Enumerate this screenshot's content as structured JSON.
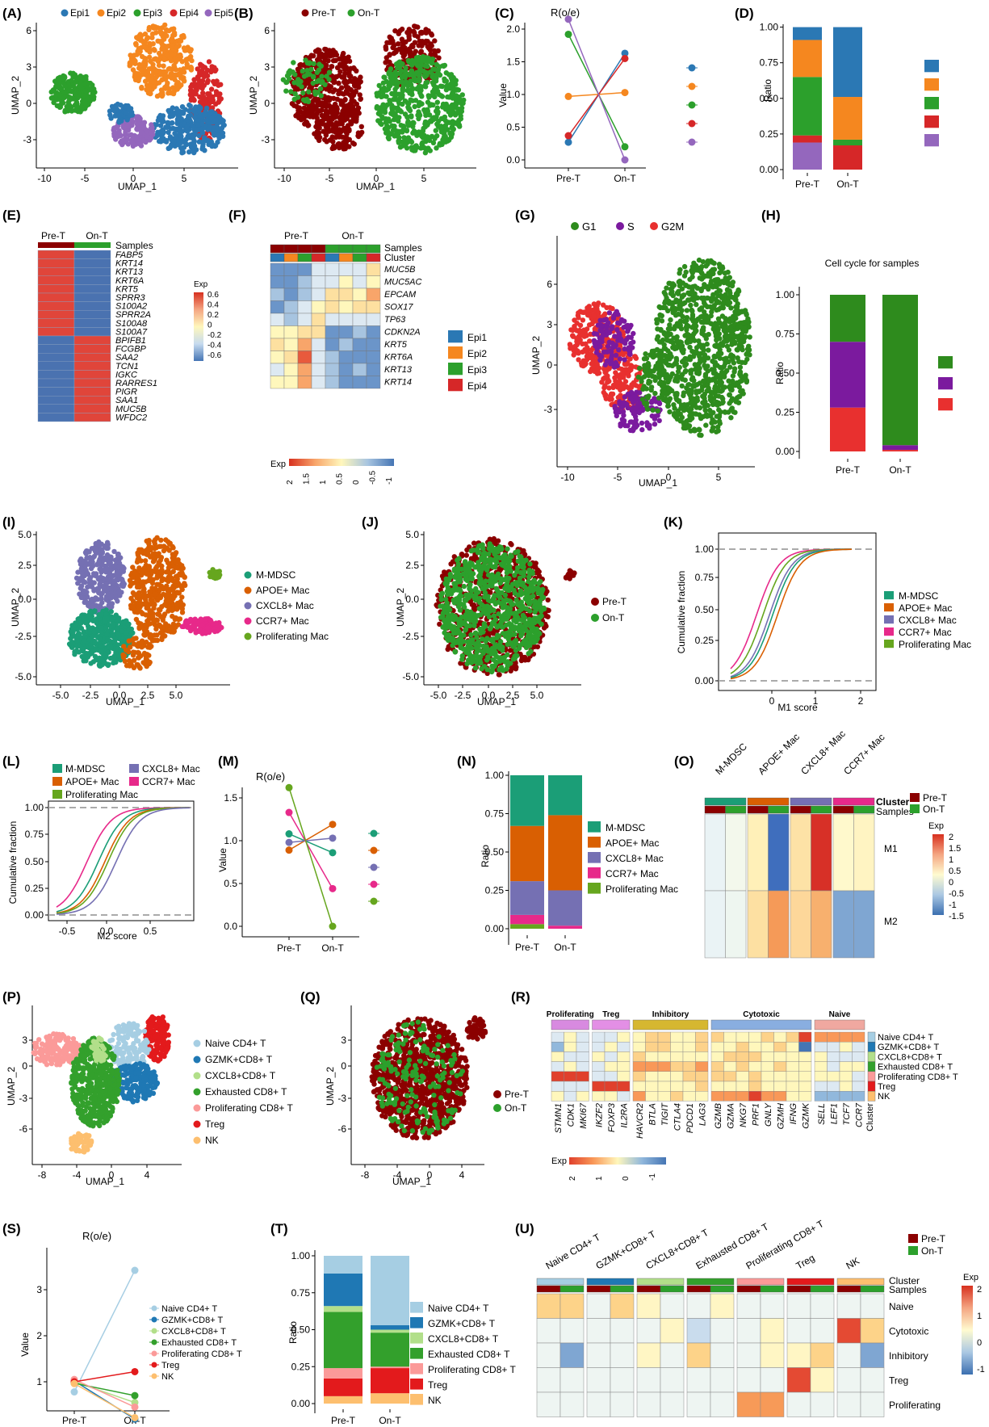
{
  "colors": {
    "epi1": "#2b78b4",
    "epi2": "#f5871f",
    "epi3": "#2ca02c",
    "epi4": "#d62728",
    "epi5": "#9467bd",
    "pre": "#8b0000",
    "on": "#2ca02c",
    "g1": "#2e8b1d",
    "s": "#7b1a9e",
    "g2m": "#e8302f",
    "mdsc": "#1b9e77",
    "apoe": "#d95f02",
    "cxcl8": "#7570b3",
    "ccr7": "#e7298a",
    "prolif": "#66a61e",
    "naive": "#a6cee3",
    "gzmk": "#1f78b4",
    "cxcl8t": "#b2df8a",
    "exh": "#33a02c",
    "prolt": "#fb9a99",
    "treg": "#e31a1c",
    "nk": "#fdbf6f"
  },
  "panel_labels": {
    "A": "(A)",
    "B": "(B)",
    "C": "(C)",
    "D": "(D)",
    "E": "(E)",
    "F": "(F)",
    "G": "(G)",
    "H": "(H)",
    "I": "(I)",
    "J": "(J)",
    "K": "(K)",
    "L": "(L)",
    "M": "(M)",
    "N": "(N)",
    "O": "(O)",
    "P": "(P)",
    "Q": "(Q)",
    "R": "(R)",
    "S": "(S)",
    "T": "(T)",
    "U": "(U)"
  },
  "chart_data": [
    {
      "panel": "A",
      "type": "scatter",
      "xlabel": "UMAP_1",
      "ylabel": "UMAP_2",
      "xticks": [
        "-10",
        "-5",
        "0",
        "5"
      ],
      "yticks": [
        "6",
        "3",
        "0",
        "-3"
      ],
      "legend": [
        "Epi1",
        "Epi2",
        "Epi3",
        "Epi4",
        "Epi5"
      ]
    },
    {
      "panel": "B",
      "type": "scatter",
      "xlabel": "UMAP_1",
      "ylabel": "UMAP_2",
      "xticks": [
        "-10",
        "-5",
        "0",
        "5"
      ],
      "yticks": [
        "6",
        "3",
        "0",
        "-3"
      ],
      "legend": [
        "Pre-T",
        "On-T"
      ]
    },
    {
      "panel": "C",
      "type": "line",
      "title": "R(o/e)",
      "ylabel": "Value",
      "categories": [
        "Pre-T",
        "On-T"
      ],
      "yticks": [
        "2.0",
        "1.5",
        "1.0",
        "0.5",
        "0.0"
      ],
      "ylim": [
        0,
        2.15
      ],
      "series": [
        {
          "name": "Epi1",
          "values": [
            0.27,
            1.63
          ]
        },
        {
          "name": "Epi2",
          "values": [
            0.97,
            1.03
          ]
        },
        {
          "name": "Epi3",
          "values": [
            1.92,
            0.2
          ]
        },
        {
          "name": "Epi4",
          "values": [
            0.37,
            1.55
          ]
        },
        {
          "name": "Epi5",
          "values": [
            2.15,
            0.0
          ]
        }
      ]
    },
    {
      "panel": "D",
      "type": "bar",
      "ylabel": "Ratio",
      "categories": [
        "Pre-T",
        "On-T"
      ],
      "yticks": [
        "1.00",
        "0.75",
        "0.50",
        "0.25",
        "0.00"
      ],
      "ylim": [
        0,
        1
      ],
      "series": [
        {
          "name": "Epi1",
          "values": [
            0.09,
            0.49
          ]
        },
        {
          "name": "Epi2",
          "values": [
            0.26,
            0.3
          ]
        },
        {
          "name": "Epi3",
          "values": [
            0.41,
            0.04
          ]
        },
        {
          "name": "Epi4",
          "values": [
            0.05,
            0.17
          ]
        },
        {
          "name": "Epi5",
          "values": [
            0.19,
            0.0
          ]
        }
      ]
    },
    {
      "panel": "E",
      "type": "heatmap",
      "columns": [
        "Pre-T",
        "On-T"
      ],
      "samples_label": "Samples",
      "legend_title": "Exp",
      "legend_ticks": [
        "0.6",
        "0.4",
        "0.2",
        "0",
        "-0.2",
        "-0.4",
        "-0.6"
      ],
      "genes": [
        "FABP5",
        "KRT14",
        "KRT13",
        "KRT6A",
        "KRT5",
        "SPRR3",
        "S100A2",
        "SPRR2A",
        "S100A8",
        "S100A7",
        "BPIFB1",
        "FCGBP",
        "SAA2",
        "TCN1",
        "IGKC",
        "RARRES1",
        "PIGR",
        "SAA1",
        "MUC5B",
        "WFDC2"
      ]
    },
    {
      "panel": "F",
      "type": "heatmap",
      "groups": [
        "Pre-T",
        "On-T"
      ],
      "samples_label": "Samples",
      "cluster_label": "Cluster",
      "legend": [
        "Epi1",
        "Epi2",
        "Epi3",
        "Epi4"
      ],
      "legend_title": "Exp",
      "legend_ticks": [
        "2",
        "1.5",
        "1",
        "0.5",
        "0",
        "-0.5",
        "-1"
      ],
      "genes": [
        "MUC5B",
        "MUC5AC",
        "EPCAM",
        "SOX17",
        "TP63",
        "CDKN2A",
        "KRT5",
        "KRT6A",
        "KRT13",
        "KRT14"
      ]
    },
    {
      "panel": "G",
      "type": "scatter",
      "xlabel": "UMAP_1",
      "ylabel": "UMAP_2",
      "xticks": [
        "-10",
        "-5",
        "0",
        "5"
      ],
      "yticks": [
        "6",
        "3",
        "0",
        "-3"
      ],
      "legend": [
        "G1",
        "S",
        "G2M"
      ]
    },
    {
      "panel": "H",
      "type": "bar",
      "title": "Cell cycle for samples",
      "ylabel": "Ratio",
      "categories": [
        "Pre-T",
        "On-T"
      ],
      "yticks": [
        "1.00",
        "0.75",
        "0.50",
        "0.25",
        "0.00"
      ],
      "ylim": [
        0,
        1
      ],
      "series": [
        {
          "name": "G1",
          "values": [
            0.3,
            0.96
          ]
        },
        {
          "name": "S",
          "values": [
            0.42,
            0.03
          ]
        },
        {
          "name": "G2M",
          "values": [
            0.28,
            0.01
          ]
        }
      ]
    },
    {
      "panel": "I",
      "type": "scatter",
      "xlabel": "UMAP_1",
      "ylabel": "UMAP_2",
      "xticks": [
        "-5.0",
        "-2.5",
        "0.0",
        "2.5",
        "5.0"
      ],
      "yticks": [
        "5.0",
        "2.5",
        "0.0",
        "-2.5",
        "-5.0"
      ],
      "legend": [
        "M-MDSC",
        "APOE+ Mac",
        "CXCL8+ Mac",
        "CCR7+ Mac",
        "Proliferating Mac"
      ]
    },
    {
      "panel": "J",
      "type": "scatter",
      "xlabel": "UMAP_1",
      "ylabel": "UMAP_2",
      "xticks": [
        "-5.0",
        "-2.5",
        "0.0",
        "2.5",
        "5.0"
      ],
      "yticks": [
        "5.0",
        "2.5",
        "0.0",
        "-2.5",
        "-5.0"
      ],
      "legend": [
        "Pre-T",
        "On-T"
      ]
    },
    {
      "panel": "K",
      "type": "line",
      "xlabel": "M1 score",
      "ylabel": "Cumulative fraction",
      "xticks": [
        "0",
        "1",
        "2"
      ],
      "yticks": [
        "1.00",
        "0.75",
        "0.50",
        "0.25",
        "0.00"
      ],
      "legend": [
        "M-MDSC",
        "APOE+ Mac",
        "CXCL8+ Mac",
        "CCR7+ Mac",
        "Proliferating Mac"
      ]
    },
    {
      "panel": "L",
      "type": "line",
      "xlabel": "M2 score",
      "ylabel": "Cumulative fraction",
      "xticks": [
        "-0.5",
        "0.0",
        "0.5"
      ],
      "yticks": [
        "1.00",
        "0.75",
        "0.50",
        "0.25",
        "0.00"
      ],
      "legend": [
        "M-MDSC",
        "CXCL8+ Mac",
        "APOE+ Mac",
        "CCR7+ Mac",
        "Proliferating Mac"
      ]
    },
    {
      "panel": "M",
      "type": "line",
      "title": "R(o/e)",
      "ylabel": "Value",
      "categories": [
        "Pre-T",
        "On-T"
      ],
      "yticks": [
        "1.5",
        "1.0",
        "0.5",
        "0.0"
      ],
      "ylim": [
        0,
        1.62
      ],
      "series": [
        {
          "name": "M-MDSC",
          "values": [
            1.08,
            0.86
          ]
        },
        {
          "name": "APOE+ Mac",
          "values": [
            0.89,
            1.19
          ]
        },
        {
          "name": "CXCL8+ Mac",
          "values": [
            0.98,
            1.03
          ]
        },
        {
          "name": "CCR7+ Mac",
          "values": [
            1.33,
            0.44
          ]
        },
        {
          "name": "Proliferating Mac",
          "values": [
            1.62,
            0.0
          ]
        }
      ]
    },
    {
      "panel": "N",
      "type": "bar",
      "ylabel": "Ratio",
      "categories": [
        "Pre-T",
        "On-T"
      ],
      "yticks": [
        "1.00",
        "0.75",
        "0.50",
        "0.25",
        "0.00"
      ],
      "ylim": [
        0,
        1
      ],
      "series": [
        {
          "name": "M-MDSC",
          "values": [
            0.33,
            0.26
          ]
        },
        {
          "name": "APOE+ Mac",
          "values": [
            0.36,
            0.49
          ]
        },
        {
          "name": "CXCL8+ Mac",
          "values": [
            0.22,
            0.23
          ]
        },
        {
          "name": "CCR7+ Mac",
          "values": [
            0.06,
            0.02
          ]
        },
        {
          "name": "Proliferating Mac",
          "values": [
            0.03,
            0.0
          ]
        }
      ]
    },
    {
      "panel": "O",
      "type": "heatmap",
      "columns": [
        "M-MDSC",
        "APOE+ Mac",
        "CXCL8+ Mac",
        "CCR7+ Mac"
      ],
      "rows": [
        "M1",
        "M2"
      ],
      "cluster_label": "Cluster",
      "samples_label": "Samples",
      "legend": [
        "Pre-T",
        "On-T"
      ],
      "legend_title": "Exp",
      "legend_ticks": [
        "2",
        "1.5",
        "1",
        "0.5",
        "0",
        "-0.5",
        "-1",
        "-1.5"
      ]
    },
    {
      "panel": "P",
      "type": "scatter",
      "xlabel": "UMAP_1",
      "ylabel": "UMAP_2",
      "xticks": [
        "-8",
        "-4",
        "0",
        "4"
      ],
      "yticks": [
        "3",
        "0",
        "-3",
        "-6"
      ],
      "legend": [
        "Naive CD4+ T",
        "GZMK+CD8+ T",
        "CXCL8+CD8+ T",
        "Exhausted CD8+ T",
        "Proliferating CD8+ T",
        "Treg",
        "NK"
      ]
    },
    {
      "panel": "Q",
      "type": "scatter",
      "xlabel": "UMAP_1",
      "ylabel": "UMAP_2",
      "xticks": [
        "-8",
        "-4",
        "0",
        "4"
      ],
      "yticks": [
        "3",
        "0",
        "-3",
        "-6"
      ],
      "legend": [
        "Pre-T",
        "On-T"
      ]
    },
    {
      "panel": "R",
      "type": "heatmap",
      "groups": [
        "Proliferating",
        "Treg",
        "Inhibitory",
        "Cytotoxic",
        "Naive"
      ],
      "genes": [
        "STMN1",
        "CDK1",
        "MKI67",
        "IKZF2",
        "FOXP3",
        "IL2RA",
        "HAVCR2",
        "BTLA",
        "TIGIT",
        "CTLA4",
        "PDCD1",
        "LAG3",
        "GZMB",
        "GZMA",
        "NKG7",
        "PRF1",
        "GNLY",
        "GZMH",
        "IFNG",
        "GZMK",
        "SELL",
        "LEF1",
        "TCF7",
        "CCR7"
      ],
      "cluster_label": "Cluster",
      "rows": [
        "Naive CD4+ T",
        "GZMK+CD8+ T",
        "CXCL8+CD8+ T",
        "Exhausted CD8+ T",
        "Proliferating CD8+ T",
        "Treg",
        "NK"
      ],
      "legend_title": "Exp",
      "legend_ticks": [
        "2",
        "1",
        "0",
        "-1"
      ]
    },
    {
      "panel": "S",
      "type": "line",
      "title": "R(o/e)",
      "ylabel": "Value",
      "categories": [
        "Pre-T",
        "On-T"
      ],
      "yticks": [
        "3",
        "2",
        "1"
      ],
      "ylim": [
        0,
        3.45
      ],
      "series": [
        {
          "name": "Naive CD4+ T",
          "values": [
            0.78,
            3.42
          ]
        },
        {
          "name": "GZMK+CD8+ T",
          "values": [
            1.02,
            0.19
          ]
        },
        {
          "name": "CXCL8+CD8+ T",
          "values": [
            1.0,
            0.55
          ]
        },
        {
          "name": "Exhausted CD8+ T",
          "values": [
            0.97,
            0.7
          ]
        },
        {
          "name": "Proliferating CD8+ T",
          "values": [
            1.05,
            0.45
          ]
        },
        {
          "name": "Treg",
          "values": [
            1.0,
            1.22
          ]
        },
        {
          "name": "NK",
          "values": [
            0.96,
            0.22
          ]
        }
      ]
    },
    {
      "panel": "T",
      "type": "bar",
      "ylabel": "Ratio",
      "categories": [
        "Pre-T",
        "On-T"
      ],
      "yticks": [
        "1.00",
        "0.75",
        "0.50",
        "0.25",
        "0.00"
      ],
      "ylim": [
        0,
        1
      ],
      "series": [
        {
          "name": "Naive CD4+ T",
          "values": [
            0.12,
            0.47
          ]
        },
        {
          "name": "GZMK+CD8+ T",
          "values": [
            0.22,
            0.03
          ]
        },
        {
          "name": "CXCL8+CD8+ T",
          "values": [
            0.04,
            0.02
          ]
        },
        {
          "name": "Exhausted CD8+ T",
          "values": [
            0.38,
            0.23
          ]
        },
        {
          "name": "Proliferating CD8+ T",
          "values": [
            0.07,
            0.01
          ]
        },
        {
          "name": "Treg",
          "values": [
            0.12,
            0.17
          ]
        },
        {
          "name": "NK",
          "values": [
            0.05,
            0.07
          ]
        }
      ]
    },
    {
      "panel": "U",
      "type": "heatmap",
      "columns": [
        "Naive CD4+ T",
        "GZMK+CD8+ T",
        "CXCL8+CD8+ T",
        "Exhausted CD8+ T",
        "Proliferating CD8+ T",
        "Treg",
        "NK"
      ],
      "rows": [
        "Naive",
        "Cytotoxic",
        "Inhibitory",
        "Treg",
        "Proliferating"
      ],
      "cluster_label": "Cluster",
      "samples_label": "Samples",
      "legend": [
        "Pre-T",
        "On-T"
      ],
      "legend_title": "Exp",
      "legend_ticks": [
        "2",
        "1",
        "0",
        "-1"
      ]
    }
  ]
}
